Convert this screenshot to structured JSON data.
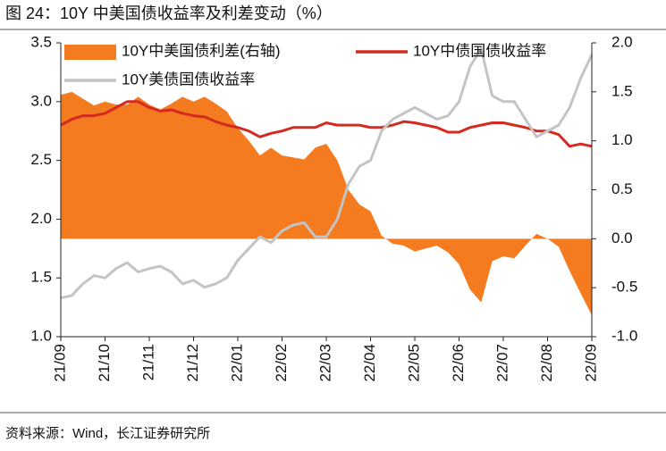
{
  "chart_data": {
    "type": "combo",
    "title": "图 24：10Y 中美国债收益率及利差变动（%）",
    "source": "资料来源：Wind，长江证券研究所",
    "categories": [
      "21/09",
      null,
      null,
      null,
      "21/10",
      null,
      null,
      null,
      "21/11",
      null,
      null,
      null,
      "21/12",
      null,
      null,
      null,
      "22/01",
      null,
      null,
      null,
      "22/02",
      null,
      null,
      null,
      "22/03",
      null,
      null,
      null,
      "22/04",
      null,
      null,
      null,
      "22/05",
      null,
      null,
      null,
      "22/06",
      null,
      null,
      null,
      "22/07",
      null,
      null,
      null,
      "22/08",
      null,
      null,
      null,
      "22/09"
    ],
    "series": [
      {
        "name": "10Y中美国债利差(右轴)",
        "type": "area",
        "axis": "y2",
        "color": "#f47b20",
        "values": [
          1.47,
          1.5,
          1.43,
          1.36,
          1.4,
          1.37,
          1.37,
          1.45,
          1.37,
          1.32,
          1.38,
          1.45,
          1.4,
          1.45,
          1.38,
          1.3,
          1.13,
          1.0,
          0.85,
          0.93,
          0.85,
          0.83,
          0.81,
          0.93,
          0.97,
          0.8,
          0.5,
          0.35,
          0.28,
          0.03,
          -0.05,
          -0.07,
          -0.13,
          -0.1,
          -0.07,
          -0.14,
          -0.26,
          -0.52,
          -0.65,
          -0.23,
          -0.18,
          -0.2,
          -0.07,
          0.05,
          0.0,
          -0.08,
          -0.33,
          -0.56,
          -0.78
        ]
      },
      {
        "name": "10Y中债国债收益率",
        "type": "line",
        "color": "#d42a1f",
        "values": [
          2.8,
          2.85,
          2.88,
          2.88,
          2.9,
          2.95,
          3.0,
          3.0,
          2.95,
          2.92,
          2.93,
          2.9,
          2.88,
          2.87,
          2.83,
          2.8,
          2.78,
          2.75,
          2.7,
          2.73,
          2.75,
          2.78,
          2.78,
          2.78,
          2.82,
          2.8,
          2.8,
          2.8,
          2.78,
          2.78,
          2.8,
          2.83,
          2.82,
          2.8,
          2.78,
          2.74,
          2.74,
          2.78,
          2.8,
          2.82,
          2.82,
          2.8,
          2.78,
          2.75,
          2.75,
          2.72,
          2.62,
          2.64,
          2.62
        ]
      },
      {
        "name": "10Y美债国债收益率",
        "type": "line",
        "color": "#c4c4c4",
        "values": [
          1.33,
          1.35,
          1.45,
          1.52,
          1.5,
          1.58,
          1.63,
          1.55,
          1.58,
          1.6,
          1.55,
          1.45,
          1.48,
          1.42,
          1.45,
          1.5,
          1.65,
          1.75,
          1.85,
          1.8,
          1.9,
          1.95,
          1.97,
          1.85,
          1.85,
          2.0,
          2.3,
          2.45,
          2.5,
          2.75,
          2.85,
          2.9,
          2.95,
          2.9,
          2.85,
          2.88,
          3.0,
          3.3,
          3.45,
          3.05,
          3.0,
          3.0,
          2.85,
          2.7,
          2.75,
          2.8,
          2.95,
          3.2,
          3.4
        ]
      }
    ],
    "ylim": [
      1.0,
      3.5
    ],
    "yticks": [
      {
        "value": 1.0,
        "label": "1.0"
      },
      {
        "value": 1.5,
        "label": "1.5"
      },
      {
        "value": 2.0,
        "label": "2.0"
      },
      {
        "value": 2.5,
        "label": "2.5"
      },
      {
        "value": 3.0,
        "label": "3.0"
      },
      {
        "value": 3.5,
        "label": "3.5"
      }
    ],
    "y2lim": [
      -1.0,
      2.0
    ],
    "y2ticks": [
      {
        "value": -1.0,
        "label": "-1.0"
      },
      {
        "value": -0.5,
        "label": "-0.5"
      },
      {
        "value": 0.0,
        "label": "0.0"
      },
      {
        "value": 0.5,
        "label": "0.5"
      },
      {
        "value": 1.0,
        "label": "1.0"
      },
      {
        "value": 1.5,
        "label": "1.5"
      },
      {
        "value": 2.0,
        "label": "2.0"
      }
    ]
  }
}
